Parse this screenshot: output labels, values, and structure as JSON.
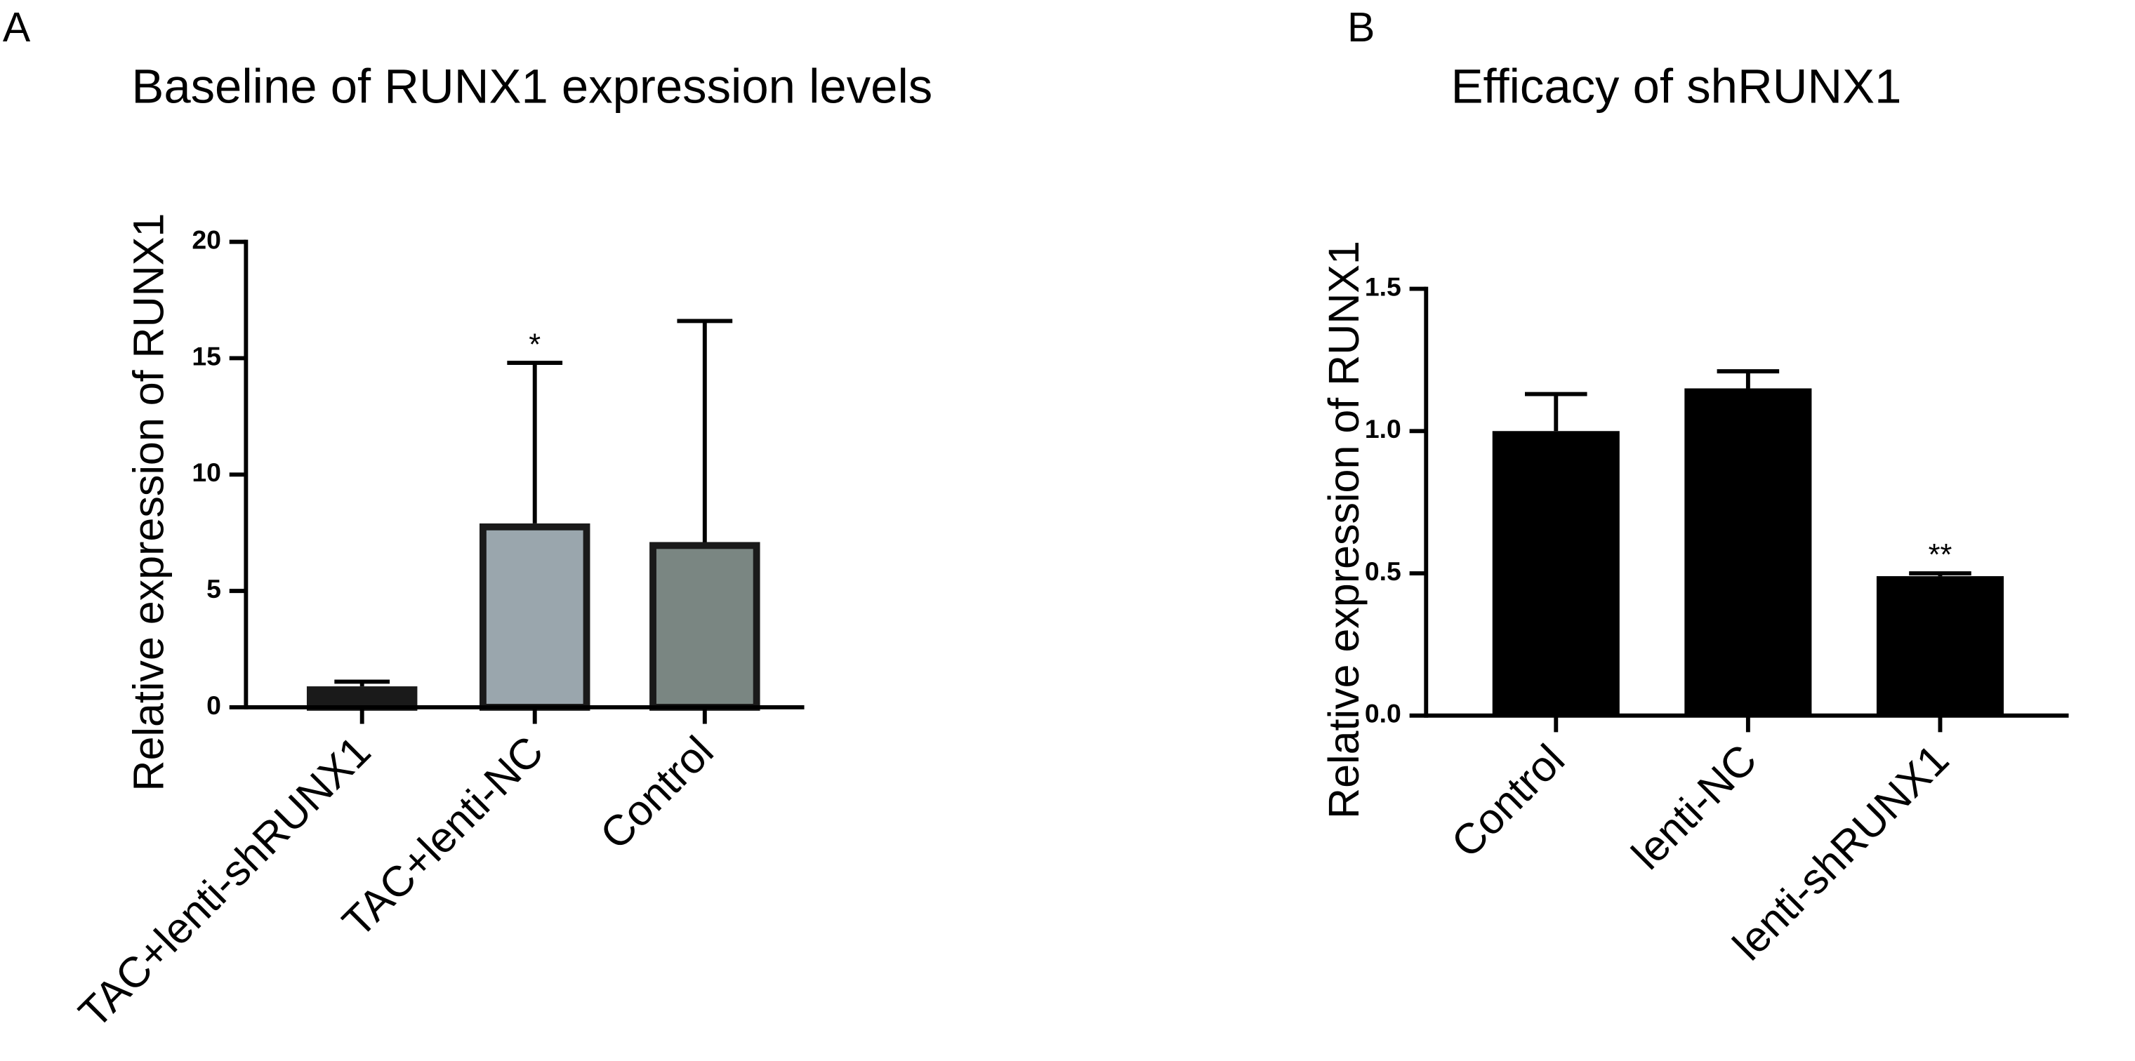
{
  "chart_data": [
    {
      "type": "bar",
      "panel_label": "A",
      "title": "Baseline of RUNX1 expression levels",
      "y_label": "Relative expression of RUNX1",
      "categories": [
        "TAC+lenti-shRUNX1",
        "TAC+lenti-NC",
        "Control"
      ],
      "values": [
        0.9,
        7.9,
        7.1
      ],
      "errors": [
        0.2,
        6.9,
        9.5
      ],
      "colors": [
        "#1a1a1a",
        "#9aa6ad",
        "#7a8682"
      ],
      "significance": [
        null,
        "*",
        null
      ],
      "ylim": [
        0,
        20
      ],
      "yticks": [
        0,
        5,
        10,
        15,
        20
      ]
    },
    {
      "type": "bar",
      "panel_label": "B",
      "title": "Efficacy of shRUNX1",
      "y_label": "Relative expression of RUNX1",
      "categories": [
        "Control",
        "lenti-NC",
        "lenti-shRUNX1"
      ],
      "values": [
        1.0,
        1.15,
        0.49
      ],
      "errors": [
        0.13,
        0.06,
        0.01
      ],
      "colors": [
        "#000000",
        "#000000",
        "#000000"
      ],
      "significance": [
        null,
        null,
        "**"
      ],
      "ylim": [
        0,
        1.5
      ],
      "yticks": [
        {
          "value": 0,
          "label": "0.0"
        },
        0.5,
        {
          "value": 1,
          "label": "1.0"
        },
        1.5
      ]
    }
  ]
}
